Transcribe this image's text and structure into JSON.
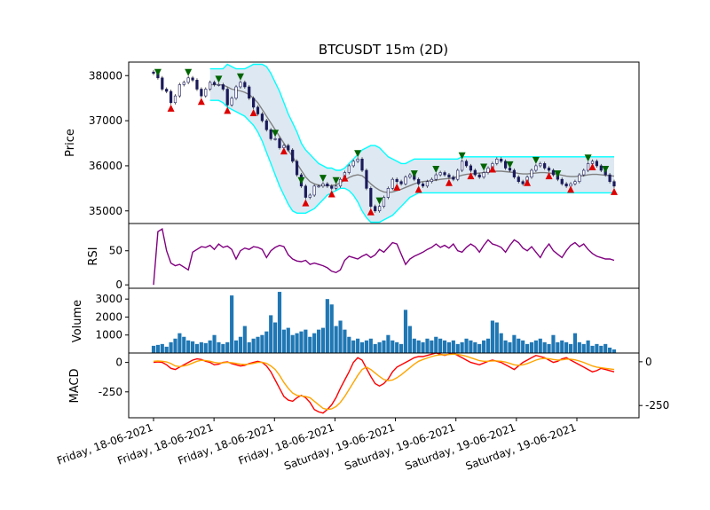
{
  "chart_data": {
    "type": "candlestick",
    "title": "BTCUSDT 15m (2D)",
    "panels": {
      "price": {
        "ylabel": "Price",
        "yticks": [
          35000,
          36000,
          37000,
          38000
        ],
        "ylim": [
          34720,
          38300
        ],
        "bollinger_fill_color": "#c6d9ea",
        "bollinger_band_color": "#00ffff",
        "moving_average_color": "#808080",
        "buy_marker_color": "#dd0000",
        "sell_marker_color": "#006400",
        "buy_signals_index": [
          4,
          11,
          17,
          23,
          30,
          35,
          41,
          44,
          50,
          56,
          61,
          68,
          73,
          78,
          86,
          91,
          96,
          101,
          106
        ],
        "sell_signals_index": [
          1,
          8,
          15,
          20,
          28,
          34,
          39,
          42,
          47,
          52,
          60,
          65,
          71,
          76,
          82,
          88,
          93,
          100,
          104
        ]
      },
      "rsi": {
        "ylabel": "RSI",
        "yticks": [
          0,
          50
        ],
        "ylim": [
          -5,
          90
        ],
        "color": "#800080"
      },
      "volume": {
        "ylabel": "Volume",
        "yticks": [
          1000,
          2000,
          3000
        ],
        "ylim": [
          0,
          3600
        ],
        "color": "#1f77b4"
      },
      "macd": {
        "ylabel": "MACD",
        "yticks": [
          0,
          -250
        ],
        "ylim": [
          -470,
          80
        ],
        "macd_color": "#ff0000",
        "signal_color": "#ffa500"
      }
    },
    "xtick_labels": [
      "Friday, 18-06-2021",
      "Friday, 18-06-2021",
      "Friday, 18-06-2021",
      "Friday, 18-06-2021",
      "Saturday, 19-06-2021",
      "Saturday, 19-06-2021",
      "Saturday, 19-06-2021",
      "Saturday, 19-06-2021"
    ],
    "series": {
      "close": [
        38050,
        37950,
        37700,
        37650,
        37400,
        37550,
        37800,
        37850,
        37950,
        37900,
        37700,
        37550,
        37700,
        37850,
        37800,
        37800,
        37700,
        37350,
        37500,
        37750,
        37850,
        37750,
        37500,
        37300,
        37150,
        37000,
        36800,
        36600,
        36600,
        36400,
        36450,
        36350,
        36100,
        35800,
        35550,
        35300,
        35350,
        35550,
        35550,
        35600,
        35550,
        35500,
        35550,
        35700,
        35850,
        36000,
        36100,
        36150,
        35900,
        35500,
        35100,
        35000,
        35100,
        35300,
        35500,
        35700,
        35650,
        35600,
        35750,
        35800,
        35700,
        35600,
        35550,
        35650,
        35700,
        35800,
        35850,
        35800,
        35750,
        35700,
        35900,
        36100,
        36000,
        35900,
        35800,
        35750,
        35850,
        35950,
        36050,
        36150,
        36100,
        35950,
        35900,
        35750,
        35650,
        35600,
        35750,
        35900,
        36000,
        36050,
        35950,
        35900,
        35800,
        35700,
        35600,
        35550,
        35600,
        35650,
        35800,
        35900,
        36050,
        36100,
        36000,
        35900,
        35800,
        35650,
        35550
      ],
      "bb_upper": [
        38200,
        38200,
        38200,
        38200,
        38200,
        38200,
        38200,
        38200,
        38200,
        38200,
        38200,
        38200,
        38150,
        38150,
        38150,
        38150,
        38150,
        38250,
        38200,
        38150,
        38150,
        38150,
        38200,
        38250,
        38250,
        38250,
        38200,
        38050,
        37850,
        37650,
        37400,
        37150,
        36950,
        36750,
        36500,
        36350,
        36250,
        36150,
        36050,
        36000,
        35950,
        35950,
        35900,
        35900,
        35950,
        36050,
        36150,
        36250,
        36350,
        36400,
        36450,
        36450,
        36400,
        36300,
        36200,
        36150,
        36100,
        36050,
        36050,
        36100,
        36150,
        36150,
        36150,
        36150,
        36150,
        36150,
        36150,
        36150,
        36150,
        36150,
        36150,
        36200,
        36200,
        36200,
        36200,
        36200,
        36200,
        36200,
        36200,
        36200,
        36200,
        36200,
        36200,
        36200,
        36200,
        36200,
        36200,
        36200,
        36200,
        36200,
        36200,
        36200,
        36200,
        36200,
        36200,
        36200,
        36200,
        36200,
        36200,
        36200,
        36200,
        36200,
        36200,
        36200,
        36200,
        36200,
        36200
      ],
      "bb_lower": [
        37400,
        37400,
        37400,
        37400,
        37400,
        37400,
        37400,
        37400,
        37400,
        37400,
        37400,
        37400,
        37450,
        37450,
        37450,
        37450,
        37400,
        37300,
        37250,
        37200,
        37150,
        37100,
        37000,
        36900,
        36750,
        36550,
        36300,
        36050,
        35800,
        35550,
        35350,
        35150,
        35000,
        34950,
        34950,
        34950,
        35000,
        35050,
        35150,
        35250,
        35350,
        35400,
        35450,
        35500,
        35500,
        35450,
        35350,
        35200,
        35000,
        34850,
        34750,
        34750,
        34750,
        34800,
        34850,
        34900,
        35000,
        35100,
        35200,
        35300,
        35350,
        35400,
        35400,
        35400,
        35400,
        35400,
        35400,
        35400,
        35400,
        35400,
        35400,
        35400,
        35400,
        35400,
        35400,
        35400,
        35400,
        35400,
        35400,
        35400,
        35400,
        35400,
        35400,
        35400,
        35400,
        35400,
        35400,
        35400,
        35400,
        35400,
        35400,
        35400,
        35400,
        35400,
        35400,
        35400,
        35400,
        35400,
        35400,
        35400,
        35400,
        35400,
        35400,
        35400,
        35400,
        35400,
        35400
      ],
      "ma": [
        37800,
        37800,
        37780,
        37760,
        37750,
        37760,
        37780,
        37800,
        37820,
        37820,
        37800,
        37780,
        37790,
        37800,
        37800,
        37800,
        37790,
        37750,
        37700,
        37680,
        37660,
        37630,
        37580,
        37500,
        37400,
        37250,
        37100,
        36950,
        36800,
        36650,
        36500,
        36350,
        36200,
        36050,
        35900,
        35750,
        35650,
        35600,
        35570,
        35560,
        35560,
        35560,
        35580,
        35620,
        35680,
        35740,
        35780,
        35800,
        35780,
        35700,
        35600,
        35520,
        35460,
        35420,
        35410,
        35420,
        35450,
        35480,
        35520,
        35560,
        35600,
        35630,
        35650,
        35660,
        35670,
        35680,
        35700,
        35710,
        35720,
        35730,
        35760,
        35790,
        35810,
        35820,
        35830,
        35840,
        35850,
        35860,
        35870,
        35880,
        35880,
        35870,
        35860,
        35850,
        35830,
        35820,
        35820,
        35830,
        35840,
        35850,
        35850,
        35840,
        35830,
        35810,
        35790,
        35770,
        35760,
        35760,
        35770,
        35780,
        35800,
        35810,
        35810,
        35800,
        35790,
        35780,
        35770
      ],
      "rsi": [
        0,
        78,
        82,
        50,
        32,
        28,
        30,
        26,
        22,
        48,
        52,
        56,
        55,
        58,
        52,
        60,
        55,
        57,
        52,
        38,
        50,
        54,
        52,
        56,
        55,
        52,
        40,
        50,
        55,
        58,
        56,
        44,
        38,
        35,
        34,
        36,
        30,
        32,
        30,
        28,
        25,
        20,
        18,
        22,
        36,
        42,
        40,
        38,
        42,
        45,
        40,
        44,
        52,
        48,
        55,
        62,
        60,
        45,
        30,
        38,
        42,
        45,
        48,
        52,
        55,
        60,
        55,
        58,
        54,
        60,
        50,
        48,
        55,
        60,
        56,
        48,
        58,
        66,
        60,
        58,
        55,
        48,
        58,
        66,
        62,
        54,
        50,
        56,
        48,
        40,
        52,
        60,
        50,
        45,
        40,
        50,
        58,
        62,
        56,
        60,
        52,
        46,
        42,
        40,
        38,
        38,
        36
      ],
      "volume": [
        400,
        450,
        500,
        350,
        600,
        800,
        1100,
        900,
        700,
        650,
        500,
        600,
        550,
        700,
        1000,
        600,
        500,
        600,
        3200,
        700,
        900,
        1500,
        600,
        800,
        900,
        1000,
        1200,
        2100,
        1700,
        3400,
        1300,
        1400,
        1000,
        1100,
        1200,
        1300,
        900,
        1100,
        1300,
        1400,
        3000,
        2700,
        1500,
        1800,
        1300,
        900,
        700,
        800,
        600,
        700,
        800,
        500,
        600,
        700,
        1000,
        700,
        600,
        500,
        2400,
        1500,
        800,
        700,
        600,
        800,
        700,
        900,
        800,
        700,
        600,
        700,
        500,
        600,
        800,
        700,
        600,
        500,
        700,
        800,
        1800,
        1700,
        1100,
        700,
        600,
        1000,
        800,
        700,
        500,
        600,
        700,
        800,
        600,
        500,
        1000,
        600,
        700,
        600,
        500,
        1100,
        600,
        500,
        700,
        400,
        500,
        400,
        500,
        300,
        200
      ],
      "macd": [
        0,
        5,
        0,
        -20,
        -50,
        -60,
        -40,
        -20,
        0,
        20,
        30,
        25,
        10,
        0,
        -20,
        -15,
        0,
        5,
        -10,
        -20,
        -30,
        -25,
        -10,
        0,
        10,
        0,
        -30,
        -80,
        -150,
        -220,
        -290,
        -320,
        -330,
        -300,
        -280,
        -300,
        -340,
        -400,
        -420,
        -430,
        -400,
        -360,
        -300,
        -220,
        -150,
        -80,
        0,
        40,
        20,
        -50,
        -120,
        -180,
        -200,
        -180,
        -140,
        -80,
        -40,
        -20,
        0,
        20,
        40,
        50,
        50,
        60,
        70,
        80,
        70,
        60,
        70,
        80,
        60,
        40,
        20,
        0,
        -10,
        -20,
        -5,
        10,
        20,
        10,
        0,
        -20,
        -40,
        -60,
        -30,
        0,
        20,
        40,
        60,
        50,
        40,
        20,
        0,
        10,
        30,
        40,
        20,
        0,
        -20,
        -40,
        -60,
        -80,
        -70,
        -50,
        -60,
        -70,
        -80
      ],
      "macd_signal": [
        10,
        12,
        10,
        5,
        -10,
        -30,
        -35,
        -30,
        -20,
        -5,
        10,
        18,
        15,
        10,
        0,
        -5,
        -3,
        0,
        -3,
        -8,
        -15,
        -18,
        -15,
        -8,
        0,
        2,
        -8,
        -30,
        -60,
        -110,
        -170,
        -220,
        -260,
        -280,
        -285,
        -290,
        -300,
        -330,
        -360,
        -390,
        -400,
        -395,
        -375,
        -340,
        -290,
        -230,
        -170,
        -110,
        -60,
        -40,
        -60,
        -90,
        -120,
        -145,
        -155,
        -150,
        -130,
        -105,
        -75,
        -45,
        -15,
        10,
        25,
        38,
        50,
        60,
        65,
        65,
        67,
        70,
        68,
        62,
        52,
        40,
        28,
        15,
        10,
        10,
        13,
        13,
        10,
        3,
        -8,
        -20,
        -25,
        -20,
        -10,
        5,
        20,
        30,
        35,
        32,
        25,
        20,
        22,
        28,
        28,
        22,
        12,
        0,
        -15,
        -30,
        -40,
        -45,
        -50,
        -55,
        -60
      ]
    }
  }
}
